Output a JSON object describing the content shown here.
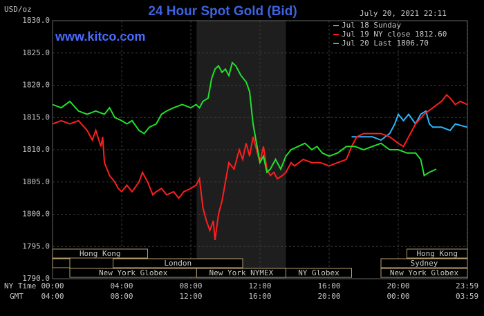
{
  "chart_data": {
    "type": "line",
    "title": "24 Hour Spot Gold (Bid)",
    "ylabel": "USD/oz",
    "timestamp": "July 20, 2021 22:11",
    "watermark": "www.kitco.com",
    "xlabel": "NY Time",
    "x2label": "GMT",
    "xlim": [
      0,
      24
    ],
    "ylim": [
      1790,
      1830
    ],
    "xticks": [
      {
        "value": 0,
        "label": "00:00"
      },
      {
        "value": 4,
        "label": "04:00"
      },
      {
        "value": 8,
        "label": "08:00"
      },
      {
        "value": 12,
        "label": "12:00"
      },
      {
        "value": 16,
        "label": "16:00"
      },
      {
        "value": 20,
        "label": "20:00"
      },
      {
        "value": 23.983,
        "label": "23:59"
      }
    ],
    "gmt_ticks": [
      "04:00",
      "08:00",
      "12:00",
      "16:00",
      "20:00",
      "00:00",
      "03:59"
    ],
    "yticks": [
      {
        "value": 1790,
        "label": "1790.0"
      },
      {
        "value": 1795,
        "label": "1795.0"
      },
      {
        "value": 1800,
        "label": "1800.0"
      },
      {
        "value": 1805,
        "label": "1805.0"
      },
      {
        "value": 1810,
        "label": "1810.0"
      },
      {
        "value": 1815,
        "label": "1815.0"
      },
      {
        "value": 1820,
        "label": "1820.0"
      },
      {
        "value": 1825,
        "label": "1825.0"
      },
      {
        "value": 1830,
        "label": "1830.0"
      }
    ],
    "grid": true,
    "shaded_range": [
      8.333,
      13.5
    ],
    "sessions": [
      {
        "name": "Hong Kong",
        "start": 0,
        "end": 5.5,
        "row": 0
      },
      {
        "name": "Hong Kong",
        "start": 20.5,
        "end": 24,
        "row": 0
      },
      {
        "name": null,
        "start": 0,
        "end": 1,
        "row": 1
      },
      {
        "name": "London",
        "start": 3.5,
        "end": 11,
        "row": 1
      },
      {
        "name": "Sydney",
        "start": 19,
        "end": 24,
        "row": 1
      },
      {
        "name": "New York Globex",
        "start": 1,
        "end": 8.333,
        "row": 2
      },
      {
        "name": "New York NYMEX",
        "start": 8.333,
        "end": 13.5,
        "row": 2
      },
      {
        "name": "NY Globex",
        "start": 13.5,
        "end": 17.3,
        "row": 2
      },
      {
        "name": "New York Globex",
        "start": 19,
        "end": 24,
        "row": 2
      }
    ],
    "series": [
      {
        "name": "Jul 18 Sunday",
        "color": "#28b8ff",
        "x": [
          17.3,
          18,
          18.5,
          19,
          19.5,
          19.8,
          20,
          20.3,
          20.6,
          21,
          21.3,
          21.6,
          21.8,
          22,
          22.5,
          23,
          23.3,
          23.98
        ],
        "values": [
          1812,
          1812,
          1812,
          1811.5,
          1812.5,
          1814,
          1815.5,
          1814.5,
          1815.5,
          1814,
          1815.5,
          1816,
          1814,
          1813.5,
          1813.5,
          1813,
          1814,
          1813.5
        ]
      },
      {
        "name": "Jul 19 NY close 1812.60",
        "color": "#ff1e1e",
        "x": [
          0,
          0.5,
          1,
          1.5,
          2,
          2.3,
          2.5,
          2.8,
          2.9,
          3,
          3.3,
          3.6,
          3.8,
          4,
          4.3,
          4.6,
          5,
          5.2,
          5.5,
          5.8,
          6,
          6.3,
          6.6,
          7,
          7.3,
          7.6,
          8,
          8.3,
          8.5,
          8.7,
          8.9,
          9.1,
          9.3,
          9.4,
          9.6,
          9.8,
          10,
          10.2,
          10.5,
          10.8,
          11,
          11.2,
          11.4,
          11.6,
          11.8,
          12,
          12.2,
          12.4,
          12.6,
          12.8,
          13,
          13.3,
          13.5,
          13.8,
          14,
          14.5,
          15,
          15.5,
          16,
          16.5,
          17,
          17.3,
          17.6,
          18,
          18.5,
          19,
          19.5,
          20,
          20.3,
          20.6,
          21,
          21.5,
          22,
          22.5,
          22.8,
          23,
          23.3,
          23.6,
          23.98
        ],
        "values": [
          1814,
          1814.5,
          1814,
          1814.5,
          1813,
          1811.5,
          1813,
          1810.5,
          1812,
          1808,
          1806,
          1805,
          1804,
          1803.5,
          1804.5,
          1803.5,
          1805,
          1806.5,
          1805,
          1803,
          1803.5,
          1804,
          1803,
          1803.5,
          1802.5,
          1803.5,
          1804,
          1804.5,
          1805.5,
          1801,
          1799,
          1797.5,
          1799,
          1796,
          1800,
          1802,
          1805,
          1808,
          1807,
          1810,
          1808.5,
          1811,
          1809,
          1812,
          1810,
          1808,
          1810.5,
          1807,
          1806,
          1806.5,
          1805.5,
          1806,
          1806.5,
          1808,
          1807.5,
          1808.5,
          1808,
          1808,
          1807.5,
          1808,
          1808.5,
          1810.5,
          1812,
          1812.5,
          1812.5,
          1812.5,
          1812,
          1811,
          1810.5,
          1812,
          1814,
          1815.5,
          1816.5,
          1817.5,
          1818.5,
          1818,
          1817,
          1817.5,
          1817
        ]
      },
      {
        "name": "Jul 20 Last 1806.70",
        "color": "#22e02a",
        "x": [
          0,
          0.5,
          1,
          1.5,
          2,
          2.5,
          3,
          3.3,
          3.6,
          4,
          4.3,
          4.6,
          5,
          5.3,
          5.6,
          6,
          6.3,
          6.6,
          7,
          7.5,
          8,
          8.3,
          8.5,
          8.7,
          9,
          9.2,
          9.4,
          9.6,
          9.8,
          10,
          10.2,
          10.4,
          10.6,
          10.9,
          11.2,
          11.4,
          11.6,
          11.8,
          12,
          12.2,
          12.4,
          12.6,
          12.9,
          13.2,
          13.5,
          13.8,
          14.2,
          14.6,
          15,
          15.3,
          15.6,
          16,
          16.5,
          17,
          17.5,
          18,
          18.5,
          19,
          19.5,
          20,
          20.5,
          21,
          21.3,
          21.5,
          21.8,
          22.2
        ],
        "values": [
          1817,
          1816.5,
          1817.5,
          1816,
          1815.5,
          1816,
          1815.5,
          1816.5,
          1815,
          1814.5,
          1814,
          1814.5,
          1813,
          1812.5,
          1813.5,
          1814,
          1815.5,
          1816,
          1816.5,
          1817,
          1816.5,
          1817,
          1816.5,
          1817.5,
          1818,
          1821,
          1822.5,
          1823,
          1822,
          1822.5,
          1821.5,
          1823.5,
          1823,
          1821.5,
          1820.5,
          1819,
          1814,
          1811,
          1808,
          1809,
          1806.5,
          1807,
          1808.5,
          1807,
          1809,
          1810,
          1810.5,
          1811,
          1810,
          1810.5,
          1809.5,
          1809,
          1809.5,
          1810.5,
          1810.5,
          1810,
          1810.5,
          1811,
          1810,
          1810,
          1809.5,
          1809.5,
          1808.5,
          1806,
          1806.5,
          1807
        ]
      }
    ]
  }
}
